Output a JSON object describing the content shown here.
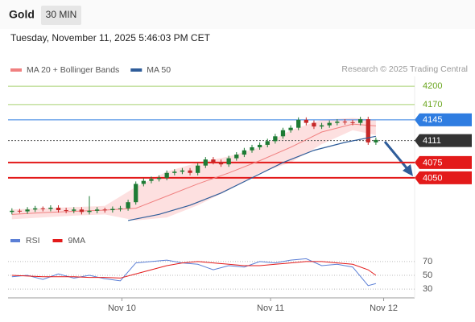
{
  "chart_data": {
    "type": "candlestick",
    "title": "Gold",
    "timeframe": "30 MIN",
    "subtitle": "Tuesday, November 11, 2025 5:46:03 PM CET",
    "source": "Research © 2025 Trading Central",
    "xlim": [
      -0.5,
      52
    ],
    "xticks": [
      {
        "value": 14.2,
        "label": "Nov 10"
      },
      {
        "value": 33.4,
        "label": "Nov 11"
      },
      {
        "value": 48,
        "label": "Nov 12"
      }
    ],
    "ylim": [
      3972,
      4216
    ],
    "up_color": "#1e7b34",
    "down_color": "#c62828",
    "candles": {
      "open": [
        3994,
        3996,
        3995,
        3998,
        4000,
        3999,
        4001,
        3997,
        3996,
        3998,
        3994,
        3996,
        3998,
        3997,
        3999,
        4000,
        4010,
        4040,
        4045,
        4048,
        4050,
        4058,
        4060,
        4062,
        4058,
        4070,
        4080,
        4076,
        4072,
        4082,
        4088,
        4095,
        4100,
        4104,
        4110,
        4118,
        4128,
        4132,
        4145,
        4140,
        4134,
        4136,
        4140,
        4142,
        4141,
        4140,
        4146,
        4108
      ],
      "high": [
        4000,
        3999,
        4002,
        4004,
        4003,
        4005,
        4005,
        4001,
        4002,
        4002,
        4020,
        4002,
        4001,
        4003,
        4004,
        4014,
        4044,
        4049,
        4052,
        4054,
        4062,
        4064,
        4066,
        4066,
        4074,
        4084,
        4084,
        4080,
        4086,
        4092,
        4099,
        4104,
        4108,
        4114,
        4122,
        4132,
        4136,
        4149,
        4149,
        4144,
        4140,
        4144,
        4146,
        4146,
        4145,
        4150,
        4150,
        4116
      ],
      "low": [
        3990,
        3992,
        3991,
        3994,
        3995,
        3995,
        3993,
        3992,
        3992,
        3990,
        3990,
        3992,
        3993,
        3993,
        3995,
        3996,
        4006,
        4036,
        4041,
        4044,
        4046,
        4054,
        4056,
        4054,
        4054,
        4066,
        4072,
        4068,
        4068,
        4078,
        4084,
        4091,
        4096,
        4100,
        4106,
        4114,
        4124,
        4128,
        4136,
        4130,
        4130,
        4132,
        4136,
        4137,
        4136,
        4136,
        4104,
        4104
      ],
      "close": [
        3996,
        3995,
        3998,
        4000,
        3999,
        4001,
        3997,
        3996,
        3998,
        3994,
        3996,
        3998,
        3997,
        3999,
        4000,
        4010,
        4040,
        4045,
        4048,
        4050,
        4058,
        4060,
        4062,
        4058,
        4070,
        4080,
        4076,
        4072,
        4082,
        4088,
        4095,
        4100,
        4104,
        4110,
        4118,
        4128,
        4132,
        4145,
        4140,
        4134,
        4136,
        4140,
        4142,
        4141,
        4140,
        4146,
        4108,
        4112
      ]
    },
    "series": [
      {
        "name": "MA 20 + Bollinger Bands",
        "color": "#f08080",
        "band_color": "#fde0e0",
        "x": [
          0,
          4,
          8,
          12,
          16,
          20,
          24,
          28,
          32,
          36,
          40,
          44,
          47
        ],
        "values": [
          3990,
          3993,
          3995,
          3997,
          4000,
          4020,
          4040,
          4058,
          4078,
          4100,
          4125,
          4138,
          4135
        ],
        "upper": [
          3998,
          4000,
          4002,
          4004,
          4035,
          4060,
          4075,
          4085,
          4100,
          4128,
          4145,
          4148,
          4145
        ],
        "lower": [
          3982,
          3985,
          3988,
          3990,
          3980,
          3985,
          4005,
          4030,
          4058,
          4075,
          4105,
          4128,
          4120
        ]
      },
      {
        "name": "MA 50",
        "color": "#2f5d9a",
        "x": [
          15,
          19,
          23,
          27,
          31,
          35,
          39,
          43,
          47
        ],
        "values": [
          3980,
          3990,
          4005,
          4025,
          4050,
          4075,
          4095,
          4108,
          4118
        ]
      }
    ],
    "levels": [
      {
        "value": 4200,
        "color": "#6aa61e",
        "style": "text"
      },
      {
        "value": 4170,
        "color": "#6aa61e",
        "style": "text"
      },
      {
        "value": 4145,
        "color": "#2f7de1",
        "style": "box"
      },
      {
        "value": 4111,
        "color": "#333333",
        "style": "box",
        "dotted": true
      },
      {
        "value": 4075,
        "color": "#e31a1a",
        "style": "box"
      },
      {
        "value": 4050,
        "color": "#e31a1a",
        "style": "box"
      }
    ],
    "rsi": {
      "ylim": [
        15,
        85
      ],
      "yticks": [
        70,
        50,
        30
      ],
      "series": [
        {
          "name": "RSI",
          "color": "#5b7fd6",
          "x": [
            0,
            2,
            4,
            6,
            8,
            10,
            12,
            14,
            16,
            18,
            20,
            22,
            24,
            26,
            28,
            30,
            32,
            34,
            36,
            38,
            40,
            42,
            44,
            46,
            47
          ],
          "values": [
            48,
            50,
            44,
            52,
            46,
            50,
            45,
            42,
            68,
            70,
            72,
            68,
            66,
            58,
            64,
            62,
            70,
            68,
            72,
            74,
            64,
            66,
            62,
            35,
            38
          ]
        },
        {
          "name": "9MA",
          "color": "#e31a1a",
          "x": [
            0,
            2,
            4,
            6,
            8,
            10,
            12,
            14,
            16,
            18,
            20,
            22,
            24,
            26,
            28,
            30,
            32,
            34,
            36,
            38,
            40,
            42,
            44,
            46,
            47
          ],
          "values": [
            50,
            49,
            48,
            48,
            48,
            47,
            47,
            46,
            52,
            58,
            64,
            68,
            70,
            68,
            66,
            64,
            64,
            66,
            68,
            70,
            70,
            68,
            66,
            58,
            50
          ]
        }
      ]
    }
  }
}
